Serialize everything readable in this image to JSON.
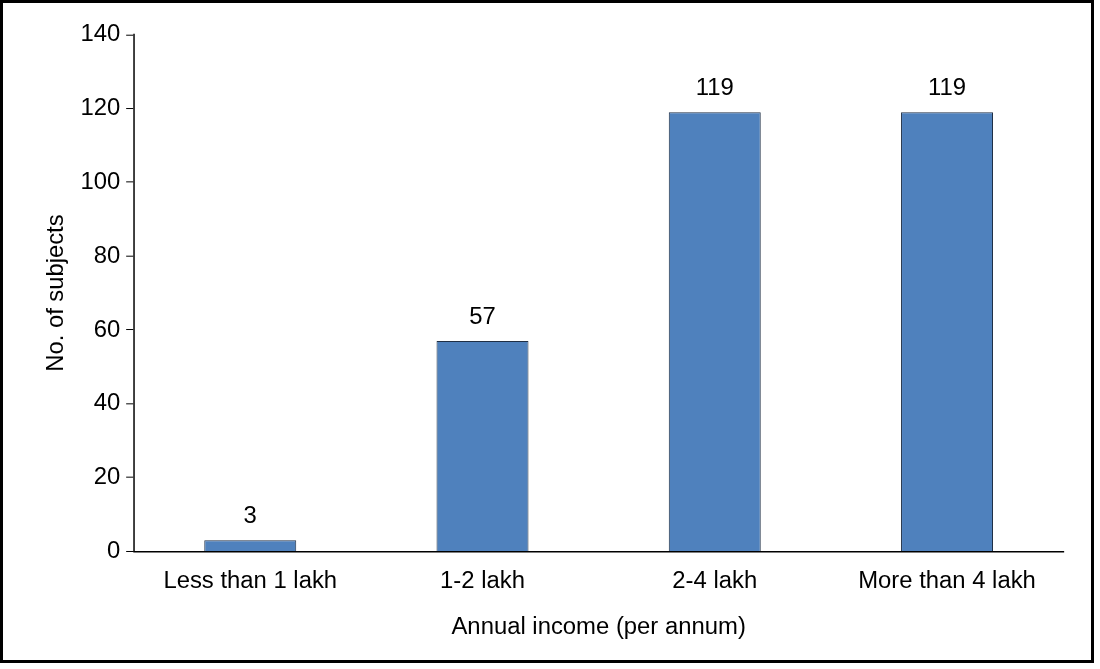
{
  "chart_data": {
    "type": "bar",
    "xlabel": "Annual income (per annum)",
    "ylabel": "No. of subjects",
    "categories": [
      "Less than 1 lakh",
      "1-2 lakh",
      "2-4 lakh",
      "More than 4 lakh"
    ],
    "values": [
      3,
      57,
      119,
      119
    ],
    "color": "#4f81bd",
    "ylim": [
      0,
      140
    ],
    "yticks": [
      0,
      20,
      40,
      60,
      80,
      100,
      120,
      140
    ],
    "data_labels": true,
    "legend": false
  }
}
